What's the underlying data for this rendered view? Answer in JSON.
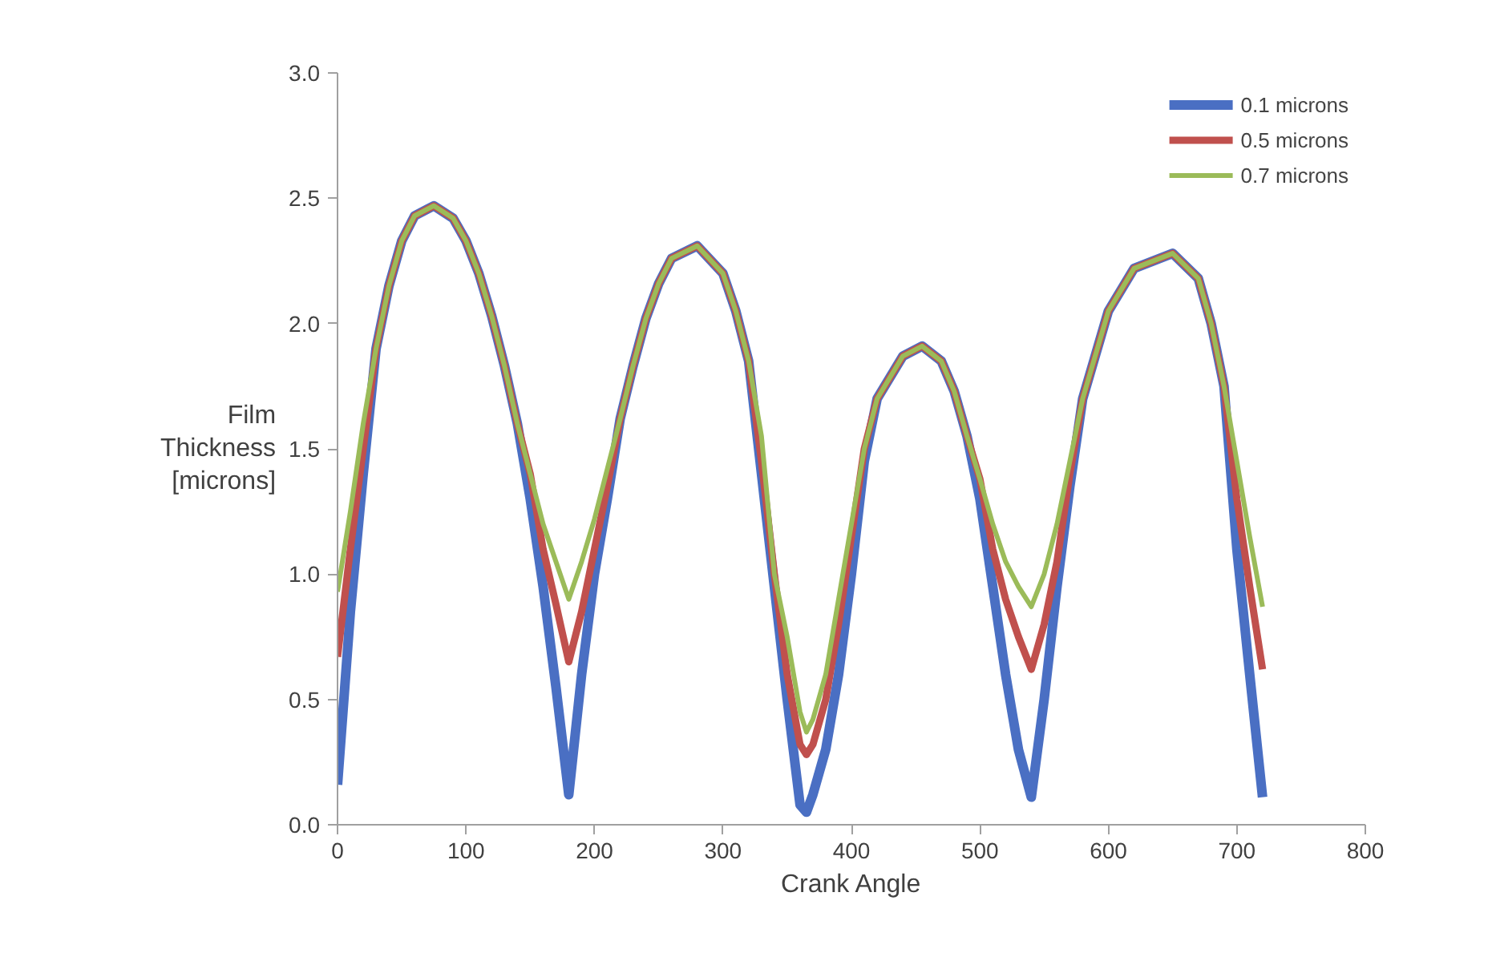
{
  "chart_data": {
    "type": "line",
    "xlabel": "Crank Angle",
    "ylabel": "Film\nThickness\n[microns]",
    "xlim": [
      0,
      800
    ],
    "xticks": [
      0,
      100,
      200,
      300,
      400,
      500,
      600,
      700,
      800
    ],
    "ylim": [
      0,
      3
    ],
    "yticks": [
      {
        "value": 0,
        "label": "0.0"
      },
      {
        "value": 0.5,
        "label": "0.5"
      },
      {
        "value": 1,
        "label": "1.0"
      },
      {
        "value": 1.5,
        "label": "1.5"
      },
      {
        "value": 2,
        "label": "2.0"
      },
      {
        "value": 2.5,
        "label": "2.5"
      },
      {
        "value": 3,
        "label": "3.0"
      }
    ],
    "grid": false,
    "legend": "top right",
    "marker": "none",
    "line_style": "solid",
    "x": [
      0,
      10,
      20,
      30,
      40,
      50,
      60,
      75,
      90,
      100,
      110,
      120,
      130,
      140,
      150,
      160,
      170,
      180,
      190,
      200,
      210,
      220,
      230,
      240,
      250,
      260,
      280,
      300,
      310,
      320,
      330,
      340,
      350,
      360,
      365,
      370,
      380,
      390,
      400,
      410,
      420,
      440,
      455,
      470,
      480,
      490,
      500,
      510,
      520,
      530,
      540,
      550,
      560,
      570,
      580,
      600,
      620,
      650,
      670,
      680,
      690,
      700,
      710,
      720
    ],
    "series": [
      {
        "name": "0.1 microns",
        "color": "#4a6fc3",
        "values": [
          0.16,
          0.85,
          1.4,
          1.9,
          2.15,
          2.33,
          2.43,
          2.47,
          2.42,
          2.33,
          2.2,
          2.03,
          1.83,
          1.6,
          1.3,
          0.95,
          0.55,
          0.12,
          0.6,
          1.0,
          1.3,
          1.62,
          1.83,
          2.02,
          2.16,
          2.26,
          2.31,
          2.2,
          2.05,
          1.85,
          1.4,
          0.95,
          0.5,
          0.08,
          0.05,
          0.12,
          0.3,
          0.6,
          1.0,
          1.45,
          1.7,
          1.87,
          1.91,
          1.85,
          1.73,
          1.55,
          1.3,
          0.95,
          0.6,
          0.3,
          0.11,
          0.5,
          0.95,
          1.35,
          1.7,
          2.05,
          2.22,
          2.28,
          2.18,
          2.0,
          1.75,
          1.1,
          0.6,
          0.11
        ]
      },
      {
        "name": "0.5 microns",
        "color": "#c0504d",
        "values": [
          0.67,
          1.1,
          1.5,
          1.9,
          2.15,
          2.33,
          2.43,
          2.47,
          2.42,
          2.33,
          2.2,
          2.03,
          1.83,
          1.6,
          1.4,
          1.1,
          0.88,
          0.65,
          0.85,
          1.1,
          1.35,
          1.62,
          1.83,
          2.02,
          2.16,
          2.26,
          2.31,
          2.2,
          2.05,
          1.85,
          1.45,
          1.0,
          0.6,
          0.32,
          0.28,
          0.32,
          0.5,
          0.8,
          1.15,
          1.5,
          1.7,
          1.87,
          1.91,
          1.85,
          1.73,
          1.55,
          1.38,
          1.1,
          0.9,
          0.75,
          0.62,
          0.8,
          1.05,
          1.4,
          1.7,
          2.05,
          2.22,
          2.28,
          2.18,
          2.0,
          1.75,
          1.3,
          0.95,
          0.62
        ]
      },
      {
        "name": "0.7 microns",
        "color": "#9bbb59",
        "values": [
          0.93,
          1.25,
          1.6,
          1.9,
          2.15,
          2.33,
          2.43,
          2.47,
          2.42,
          2.33,
          2.2,
          2.03,
          1.83,
          1.6,
          1.4,
          1.2,
          1.05,
          0.9,
          1.05,
          1.22,
          1.42,
          1.62,
          1.83,
          2.02,
          2.16,
          2.26,
          2.31,
          2.2,
          2.05,
          1.85,
          1.55,
          1.0,
          0.75,
          0.45,
          0.37,
          0.42,
          0.6,
          0.9,
          1.2,
          1.5,
          1.7,
          1.87,
          1.91,
          1.85,
          1.73,
          1.55,
          1.38,
          1.2,
          1.05,
          0.95,
          0.87,
          1.0,
          1.2,
          1.45,
          1.7,
          2.05,
          2.22,
          2.28,
          2.18,
          2.0,
          1.75,
          1.45,
          1.15,
          0.87
        ]
      }
    ]
  }
}
